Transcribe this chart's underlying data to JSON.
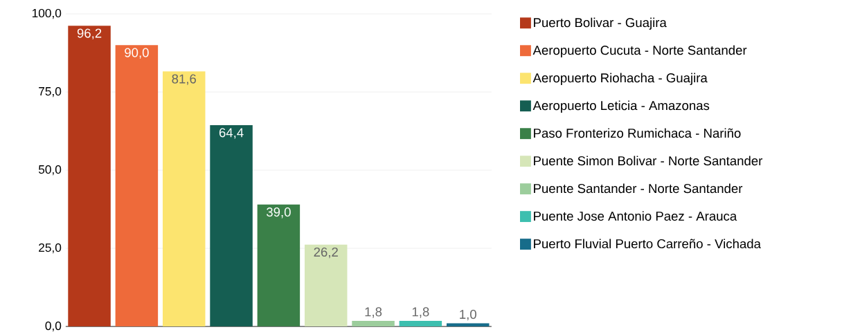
{
  "chart_data": {
    "type": "bar",
    "categories": [
      null,
      null,
      null,
      null,
      null,
      null,
      null,
      null,
      null
    ],
    "series": [
      {
        "name": "Puerto Bolivar - Guajira",
        "color": "#b5391a",
        "values": [
          96.2,
          null,
          null,
          null,
          null,
          null,
          null,
          null,
          null
        ],
        "value_labels": [
          "96,2",
          null,
          null,
          null,
          null,
          null,
          null,
          null,
          null
        ]
      },
      {
        "name": "Aeropuerto Cucuta - Norte Santander",
        "color": "#ee6a3a",
        "values": [
          null,
          90.0,
          null,
          null,
          null,
          null,
          null,
          null,
          null
        ],
        "value_labels": [
          null,
          "90,0",
          null,
          null,
          null,
          null,
          null,
          null,
          null
        ]
      },
      {
        "name": "Aeropuerto Riohacha - Guajira",
        "color": "#fce46f",
        "values": [
          null,
          null,
          81.6,
          null,
          null,
          null,
          null,
          null,
          null
        ],
        "value_labels": [
          null,
          null,
          "81,6",
          null,
          null,
          null,
          null,
          null,
          null
        ]
      },
      {
        "name": "Aeropuerto Leticia - Amazonas",
        "color": "#155e52",
        "values": [
          null,
          null,
          null,
          64.4,
          null,
          null,
          null,
          null,
          null
        ],
        "value_labels": [
          null,
          null,
          null,
          "64,4",
          null,
          null,
          null,
          null,
          null
        ]
      },
      {
        "name": "Paso Fronterizo Rumichaca - Nariño",
        "color": "#3a8048",
        "values": [
          null,
          null,
          null,
          null,
          39.0,
          null,
          null,
          null,
          null
        ],
        "value_labels": [
          null,
          null,
          null,
          null,
          "39,0",
          null,
          null,
          null,
          null
        ]
      },
      {
        "name": "Puente Simon Bolivar - Norte Santander",
        "color": "#d6e6b8",
        "values": [
          null,
          null,
          null,
          null,
          null,
          26.2,
          null,
          null,
          null
        ],
        "value_labels": [
          null,
          null,
          null,
          null,
          null,
          "26,2",
          null,
          null,
          null
        ]
      },
      {
        "name": "Puente Santander - Norte Santander",
        "color": "#9ccd9c",
        "values": [
          null,
          null,
          null,
          null,
          null,
          null,
          1.8,
          null,
          null
        ],
        "value_labels": [
          null,
          null,
          null,
          null,
          null,
          null,
          "1,8",
          null,
          null
        ]
      },
      {
        "name": "Puente Jose Antonio Paez - Arauca",
        "color": "#3dbfaf",
        "values": [
          null,
          null,
          null,
          null,
          null,
          null,
          null,
          1.8,
          null
        ],
        "value_labels": [
          null,
          null,
          null,
          null,
          null,
          null,
          null,
          "1,8",
          null
        ]
      },
      {
        "name": "Puerto Fluvial Puerto Carreño - Vichada",
        "color": "#176c8a",
        "values": [
          null,
          null,
          null,
          null,
          null,
          null,
          null,
          null,
          1.0
        ],
        "value_labels": [
          null,
          null,
          null,
          null,
          null,
          null,
          null,
          null,
          "1,0"
        ]
      }
    ],
    "ylim": [
      0,
      100
    ],
    "yticks": [
      {
        "value": 0,
        "label": "0,0"
      },
      {
        "value": 25,
        "label": "25,0"
      },
      {
        "value": 50,
        "label": "50,0"
      },
      {
        "value": 75,
        "label": "75,0"
      },
      {
        "value": 100,
        "label": "100,0"
      }
    ],
    "grid": "y",
    "legend": "right"
  }
}
